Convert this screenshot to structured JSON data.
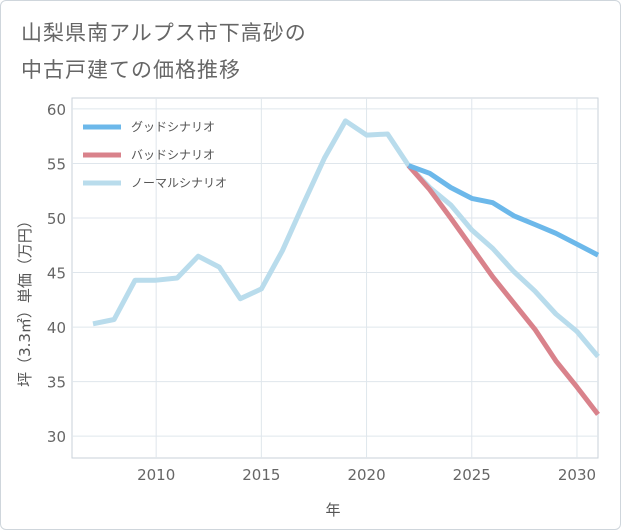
{
  "title": "山梨県南アルプス市下高砂の\n中古戸建ての価格推移",
  "chart_data": {
    "type": "line",
    "title": "山梨県南アルプス市下高砂の中古戸建ての価格推移",
    "xlabel": "年",
    "ylabel": "坪（3.3㎡）単価（万円）",
    "xlim": [
      2006,
      2031
    ],
    "ylim": [
      28,
      61
    ],
    "xticks": [
      2010,
      2015,
      2020,
      2025,
      2030
    ],
    "yticks": [
      30,
      35,
      40,
      45,
      50,
      55,
      60
    ],
    "grid": true,
    "legend_position": "top-left",
    "series": [
      {
        "name": "グッドシナリオ",
        "color": "#6cb8ea",
        "x": [
          2022,
          2023,
          2024,
          2025,
          2026,
          2027,
          2028,
          2029,
          2030,
          2031
        ],
        "values": [
          54.8,
          54.1,
          52.8,
          51.8,
          51.4,
          50.2,
          49.4,
          48.6,
          47.6,
          46.6
        ]
      },
      {
        "name": "バッドシナリオ",
        "color": "#d9828b",
        "x": [
          2022,
          2023,
          2024,
          2025,
          2026,
          2027,
          2028,
          2029,
          2030,
          2031
        ],
        "values": [
          54.8,
          52.6,
          50.0,
          47.3,
          44.6,
          42.2,
          39.8,
          36.9,
          34.5,
          32.0
        ]
      },
      {
        "name": "ノーマルシナリオ",
        "color": "#b9dcec",
        "x": [
          2007,
          2008,
          2009,
          2010,
          2011,
          2012,
          2013,
          2014,
          2015,
          2016,
          2017,
          2018,
          2019,
          2020,
          2021,
          2022,
          2023,
          2024,
          2025,
          2026,
          2027,
          2028,
          2029,
          2030,
          2031
        ],
        "values": [
          40.3,
          40.7,
          44.3,
          44.3,
          44.5,
          46.5,
          45.5,
          42.6,
          43.5,
          47.0,
          51.3,
          55.5,
          58.9,
          57.6,
          57.7,
          54.8,
          52.8,
          51.2,
          48.9,
          47.2,
          45.1,
          43.3,
          41.2,
          39.6,
          37.3
        ]
      }
    ]
  }
}
